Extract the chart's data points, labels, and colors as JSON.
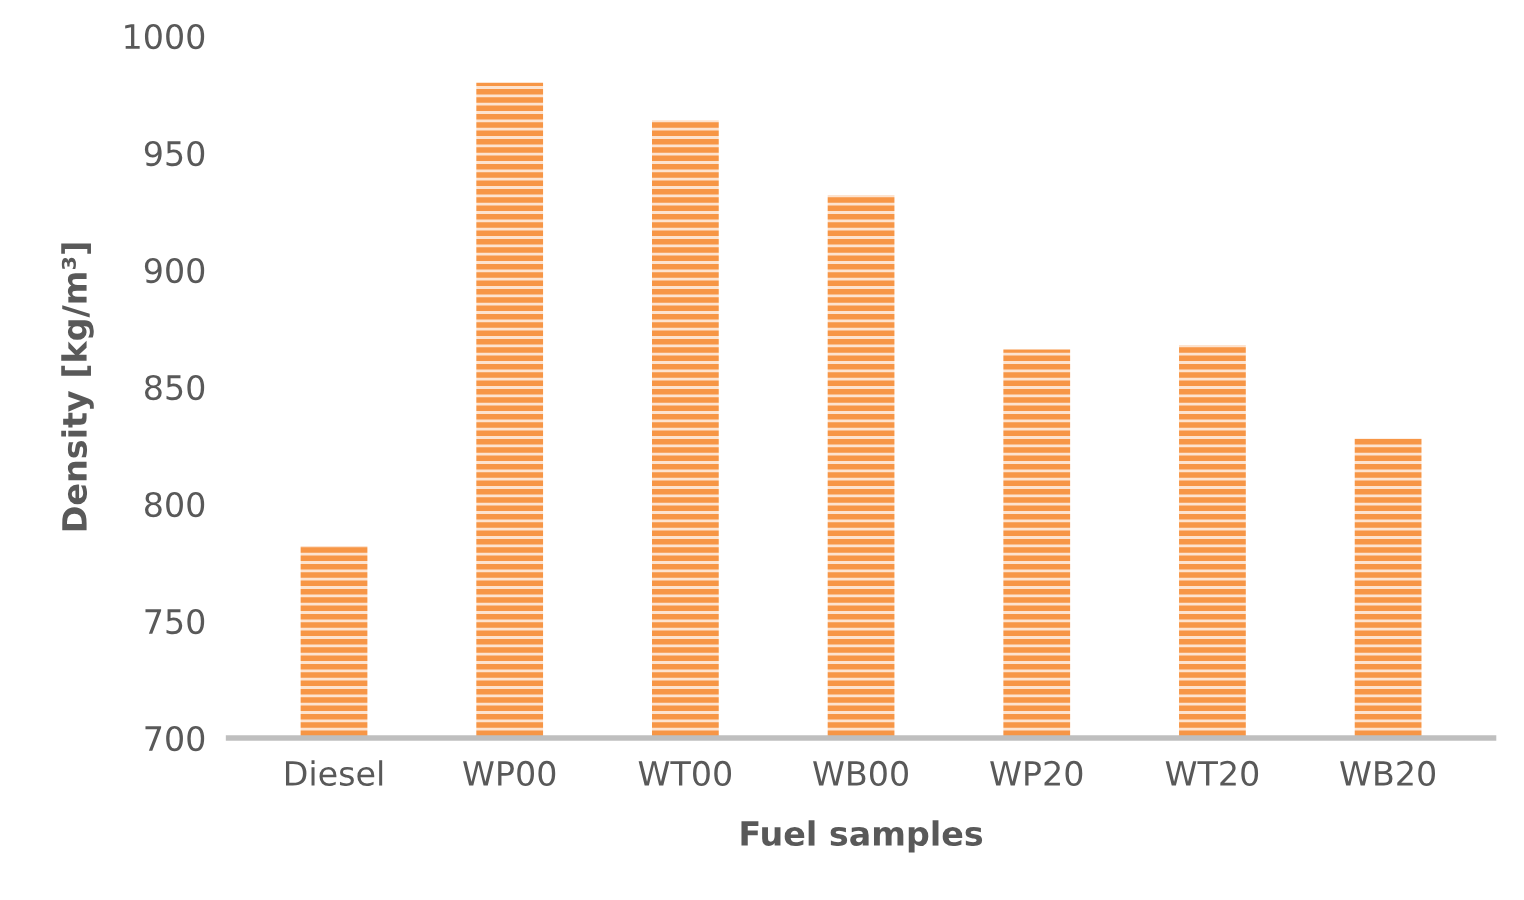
{
  "chart_data": {
    "type": "bar",
    "xlabel": "Fuel samples",
    "ylabel": "Density [kg/m³]",
    "categories": [
      "Diesel",
      "WP00",
      "WT00",
      "WB00",
      "WP20",
      "WT20",
      "WB20"
    ],
    "values": [
      782,
      980,
      964,
      932,
      866,
      868,
      828
    ],
    "color": "#f79646",
    "ylim": [
      700,
      1000
    ],
    "yticks": [
      700,
      750,
      800,
      850,
      900,
      950,
      1000
    ],
    "grid": false
  }
}
